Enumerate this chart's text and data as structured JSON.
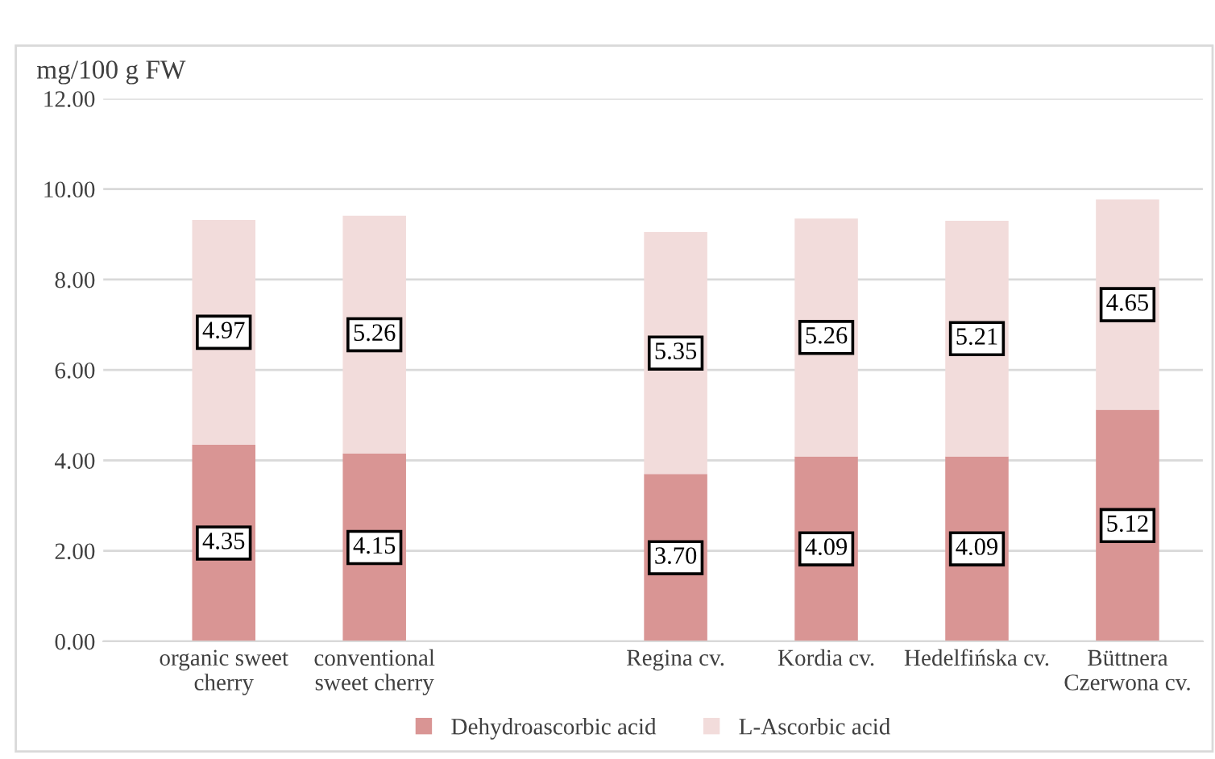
{
  "chart_data": {
    "type": "bar",
    "stacked": true,
    "ylabel": "mg/100 g FW",
    "categories": [
      "organic sweet cherry",
      "conventional sweet cherry",
      null,
      "Regina cv.",
      "Kordia cv.",
      "Hedelfińska cv.",
      "Büttnera Czerwona cv."
    ],
    "series": [
      {
        "name": "Dehydroascorbic acid",
        "color": "#d99594",
        "values": [
          4.35,
          4.15,
          null,
          3.7,
          4.09,
          4.09,
          5.12
        ],
        "value_labels": [
          "4.35",
          "4.15",
          null,
          "3.70",
          "4.09",
          "4.09",
          "5.12"
        ]
      },
      {
        "name": "L-Ascorbic acid",
        "color": "#f2dcdb",
        "values": [
          4.97,
          5.26,
          null,
          5.35,
          5.26,
          5.21,
          4.65
        ],
        "value_labels": [
          "4.97",
          "5.26",
          null,
          "5.35",
          "5.26",
          "5.21",
          "4.65"
        ]
      }
    ],
    "ylim": [
      0,
      12
    ],
    "yticks": [
      {
        "value": 0,
        "label": "0.00"
      },
      {
        "value": 2,
        "label": "2.00"
      },
      {
        "value": 4,
        "label": "4.00"
      },
      {
        "value": 6,
        "label": "6.00"
      },
      {
        "value": 8,
        "label": "8.00"
      },
      {
        "value": 10,
        "label": "10.00"
      },
      {
        "value": 12,
        "label": "12.00"
      }
    ],
    "grid": "y",
    "legend": "bottom"
  }
}
